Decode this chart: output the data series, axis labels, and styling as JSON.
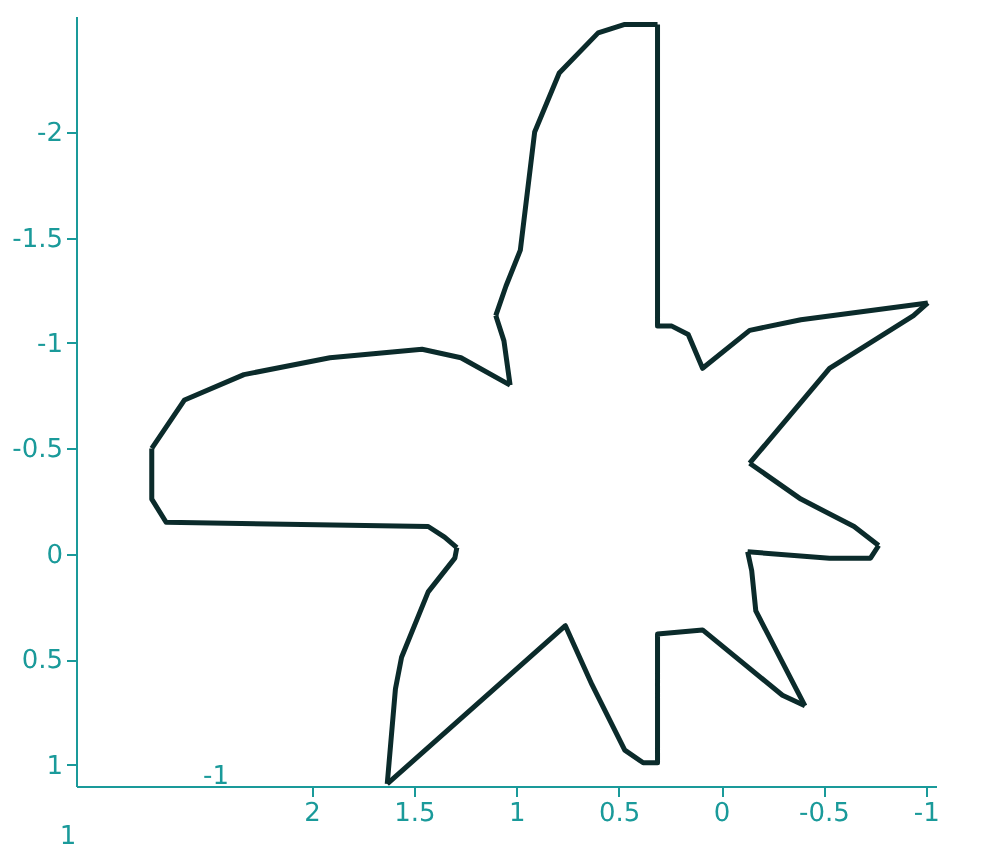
{
  "chart_data": {
    "type": "line",
    "series": [
      {
        "color": "#0b2b2b",
        "x": [
          0.31,
          0.31,
          0.24,
          0.16,
          0.09,
          -0.14,
          -0.39,
          -1.01
        ],
        "values": [
          -2.51,
          -1.08,
          -1.08,
          -1.04,
          -0.88,
          -1.06,
          -1.11,
          -1.19
        ]
      },
      {
        "color": "#0b2b2b",
        "x": [
          -1.01,
          -0.94,
          -0.53,
          -0.14
        ],
        "values": [
          -1.19,
          -1.13,
          -0.88,
          -0.43
        ]
      },
      {
        "color": "#0b2b2b",
        "x": [
          -0.14,
          -0.39,
          -0.65,
          -0.77
        ],
        "values": [
          -0.43,
          -0.26,
          -0.13,
          -0.04
        ]
      },
      {
        "color": "#0b2b2b",
        "x": [
          -0.77,
          -0.73,
          -0.53,
          -0.13
        ],
        "values": [
          -0.04,
          0.02,
          0.02,
          -0.01
        ]
      },
      {
        "color": "#0b2b2b",
        "x": [
          -0.13,
          -0.15,
          -0.17,
          -0.41
        ],
        "values": [
          -0.01,
          0.08,
          0.27,
          0.72
        ]
      },
      {
        "color": "#0b2b2b",
        "x": [
          -0.41,
          -0.3,
          0.09,
          0.31,
          0.31,
          0.38,
          0.47,
          0.63,
          0.76,
          1.63
        ],
        "values": [
          0.72,
          0.67,
          0.36,
          0.38,
          0.99,
          0.99,
          0.93,
          0.62,
          0.34,
          1.09
        ]
      },
      {
        "color": "#0b2b2b",
        "x": [
          1.63,
          1.59,
          1.56,
          1.43,
          1.3,
          1.29
        ],
        "values": [
          1.09,
          0.64,
          0.49,
          0.18,
          0.02,
          -0.03
        ]
      },
      {
        "color": "#0b2b2b",
        "x": [
          1.29,
          1.35,
          1.43,
          2.71,
          2.78,
          2.78
        ],
        "values": [
          -0.03,
          -0.08,
          -0.13,
          -0.15,
          -0.26,
          -0.5
        ]
      },
      {
        "color": "#0b2b2b",
        "x": [
          2.78,
          2.62,
          2.33,
          1.91,
          1.46,
          1.27,
          1.03
        ],
        "values": [
          -0.5,
          -0.73,
          -0.85,
          -0.93,
          -0.97,
          -0.93,
          -0.8
        ]
      },
      {
        "color": "#0b2b2b",
        "x": [
          1.03,
          1.06,
          1.1
        ],
        "values": [
          -0.8,
          -1.01,
          -1.13
        ]
      },
      {
        "color": "#0b2b2b",
        "x": [
          1.1,
          1.05,
          0.98,
          0.91,
          0.79,
          0.6,
          0.47,
          0.31
        ],
        "values": [
          -1.13,
          -1.27,
          -1.44,
          -2.0,
          -2.28,
          -2.47,
          -2.51,
          -2.51
        ]
      }
    ],
    "xlim": [
      3.15,
      -1.05
    ],
    "ylim": [
      1.1,
      -2.55
    ],
    "xticks": [
      2,
      1.5,
      1,
      0.5,
      0,
      -0.5,
      -1
    ],
    "yticks": [
      -2,
      -1.5,
      -1,
      -0.5,
      0,
      0.5,
      1
    ],
    "annotations": [
      "-1",
      "1"
    ],
    "grid": false,
    "marker": "none",
    "line_style": "solid"
  }
}
